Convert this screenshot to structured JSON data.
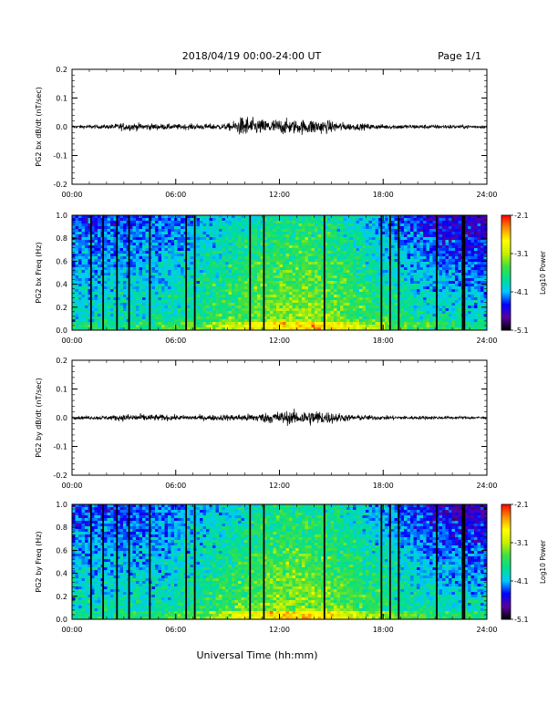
{
  "header": {
    "title": "2018/04/19  00:00-24:00 UT",
    "page_label": "Page 1/1"
  },
  "footer": {
    "xlabel": "Universal Time (hh:mm)"
  },
  "colorbar": {
    "label": "Log10 Power",
    "ticks": [
      "-2.1",
      "-3.1",
      "-4.1",
      "-5.1"
    ],
    "range": [
      -5.1,
      -2.1
    ],
    "colors": [
      "#000000",
      "#5a00a0",
      "#0000ff",
      "#00c8ff",
      "#00e090",
      "#40e040",
      "#c8f000",
      "#ffff00",
      "#ff9000",
      "#ff0000"
    ]
  },
  "chart_data": [
    {
      "type": "line",
      "ylabel": "PG2 bx dB/dt (nT/sec)",
      "xlim": [
        "00:00",
        "24:00"
      ],
      "ylim": [
        -0.2,
        0.2
      ],
      "yticks": [
        "0.2",
        "0.1",
        "0.0",
        "-0.1",
        "-0.2"
      ],
      "xticks": [
        "00:00",
        "06:00",
        "12:00",
        "18:00",
        "24:00"
      ],
      "envelope": {
        "x_hours": [
          0,
          2,
          3,
          6,
          9,
          9.5,
          10,
          10.5,
          11,
          12,
          13,
          14,
          15,
          16,
          18,
          21,
          24
        ],
        "amplitude": [
          0.006,
          0.008,
          0.015,
          0.01,
          0.012,
          0.025,
          0.045,
          0.03,
          0.028,
          0.03,
          0.026,
          0.03,
          0.022,
          0.014,
          0.009,
          0.008,
          0.006
        ]
      }
    },
    {
      "type": "heatmap",
      "ylabel": "PG2 bx Freq (Hz)",
      "xlim": [
        "00:00",
        "24:00"
      ],
      "ylim": [
        0.0,
        1.0
      ],
      "yticks": [
        "1.0",
        "0.8",
        "0.6",
        "0.4",
        "0.2",
        "0.0"
      ],
      "xticks": [
        "00:00",
        "06:00",
        "12:00",
        "18:00",
        "24:00"
      ],
      "gap_lines_hours": [
        1.1,
        1.8,
        2.6,
        3.3,
        4.5,
        6.6,
        7.1,
        10.3,
        11.1,
        14.6,
        17.9,
        18.4,
        18.9,
        21.1,
        22.6,
        22.7
      ]
    },
    {
      "type": "line",
      "ylabel": "PG2 by dB/dt (nT/sec)",
      "xlim": [
        "00:00",
        "24:00"
      ],
      "ylim": [
        -0.2,
        0.2
      ],
      "yticks": [
        "0.2",
        "0.1",
        "0.0",
        "-0.1",
        "-0.2"
      ],
      "xticks": [
        "00:00",
        "06:00",
        "12:00",
        "18:00",
        "24:00"
      ],
      "envelope": {
        "x_hours": [
          0,
          2,
          3.5,
          6,
          8,
          10,
          11,
          12,
          13,
          14,
          15,
          16,
          18,
          20,
          24
        ],
        "amplitude": [
          0.005,
          0.008,
          0.015,
          0.01,
          0.01,
          0.014,
          0.018,
          0.025,
          0.026,
          0.03,
          0.022,
          0.012,
          0.008,
          0.007,
          0.005
        ]
      }
    },
    {
      "type": "heatmap",
      "ylabel": "PG2 by Freq (Hz)",
      "xlim": [
        "00:00",
        "24:00"
      ],
      "ylim": [
        0.0,
        1.0
      ],
      "yticks": [
        "1.0",
        "0.8",
        "0.6",
        "0.4",
        "0.2",
        "0.0"
      ],
      "xticks": [
        "00:00",
        "06:00",
        "12:00",
        "18:00",
        "24:00"
      ],
      "gap_lines_hours": [
        1.1,
        1.8,
        2.6,
        3.3,
        4.5,
        6.6,
        7.1,
        10.3,
        11.1,
        14.6,
        17.9,
        18.4,
        18.9,
        21.1,
        22.6,
        22.7
      ]
    }
  ]
}
